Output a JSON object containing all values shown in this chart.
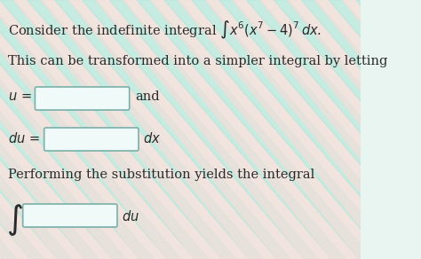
{
  "bg_color_light": "#e8f5f0",
  "bg_stripe1": "#b8e8dc",
  "bg_stripe2": "#f5ddd8",
  "text_color": "#2a2a2a",
  "box_facecolor": "#f0faf8",
  "box_edgecolor": "#7ab0aa",
  "font_size": 10.5,
  "line1": "Consider the indefinite integral",
  "line1_math": "$\\int x^6(x^7-4)^7\\,dx.$",
  "line2": "This can be transformed into a simpler integral by letting",
  "line3a": "$u\\,=$",
  "line3b": "and",
  "line4a": "$du\\,=$",
  "line4b": "$dx$",
  "line5": "Performing the substitution yields the integral",
  "line6b": "$du$"
}
